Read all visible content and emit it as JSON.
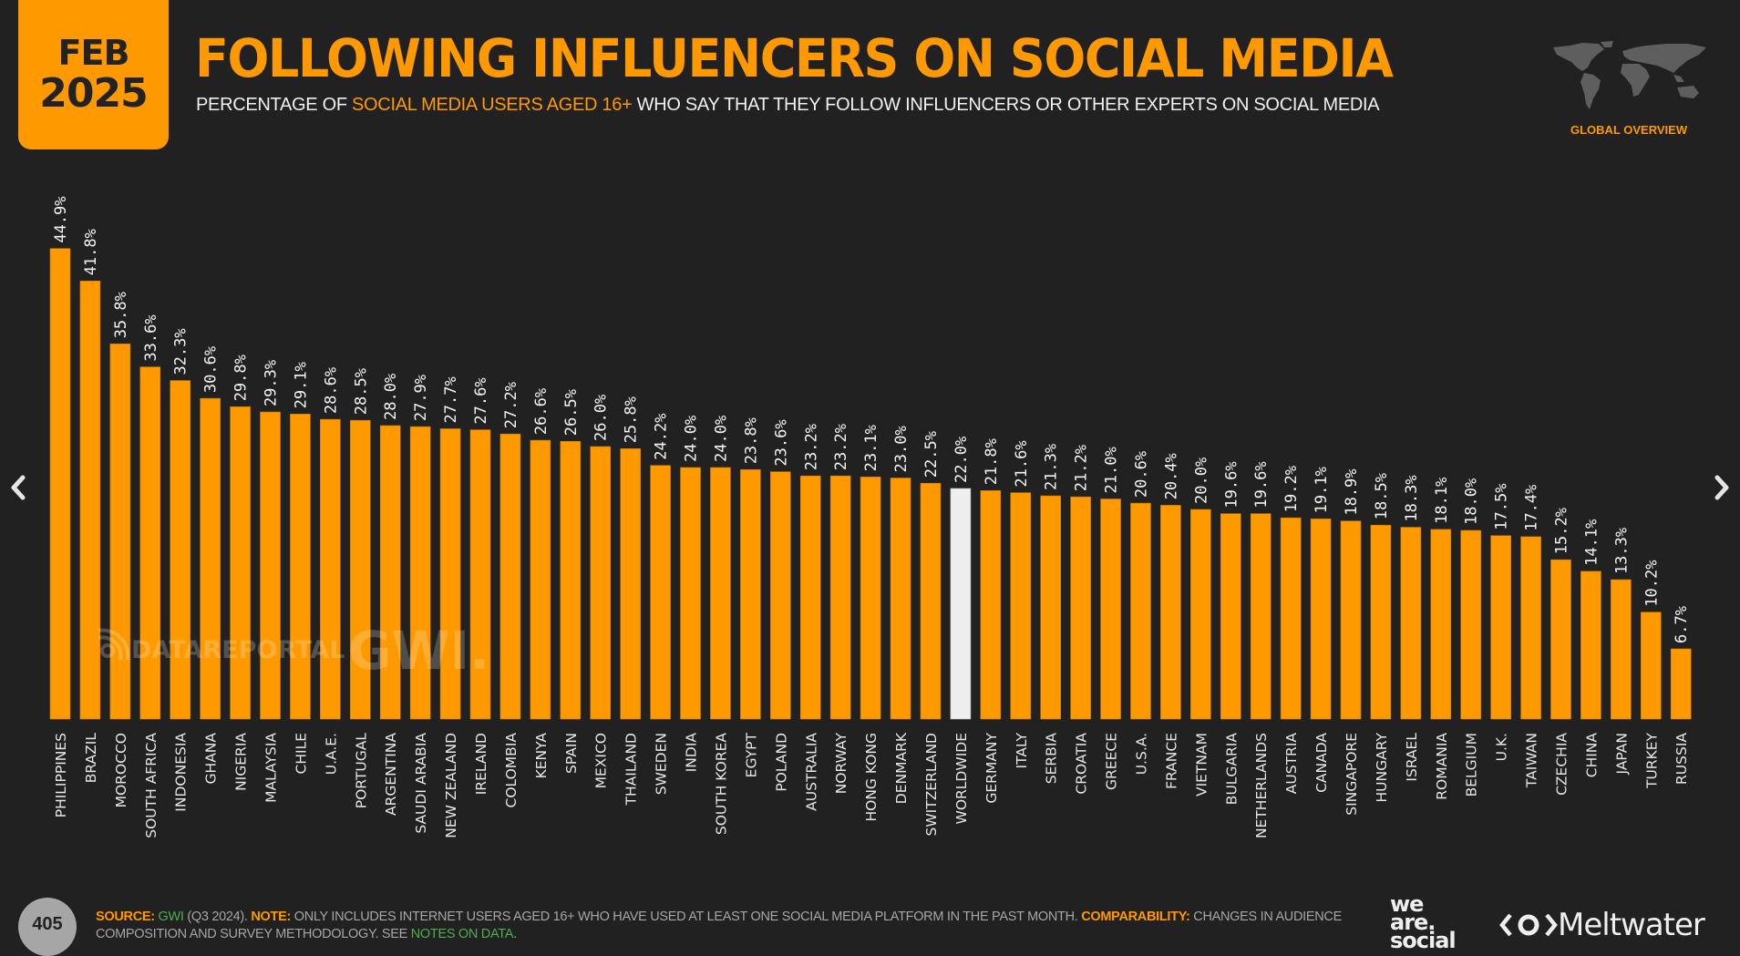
{
  "header": {
    "date_month": "FEB",
    "date_year": "2025",
    "title": "FOLLOWING INFLUENCERS ON SOCIAL MEDIA",
    "subtitle_pre": "PERCENTAGE OF ",
    "subtitle_highlight": "SOCIAL MEDIA USERS AGED 16+",
    "subtitle_post": " WHO SAY THAT THEY FOLLOW INFLUENCERS OR OTHER EXPERTS ON SOCIAL MEDIA",
    "region_label": "GLOBAL OVERVIEW"
  },
  "nav": {
    "prev_icon": "chevron-left-icon",
    "next_icon": "chevron-right-icon"
  },
  "watermarks": {
    "datareportal": "DATAREPORTAL",
    "gwi": "GWI."
  },
  "colors": {
    "accent": "#ff9900",
    "highlight_bar": "#eeeeee",
    "background": "#212121",
    "link": "#4caf50"
  },
  "chart_data": {
    "type": "bar",
    "title": "FOLLOWING INFLUENCERS ON SOCIAL MEDIA",
    "xlabel": "",
    "ylabel": "",
    "unit": "%",
    "ylim": [
      0,
      45
    ],
    "grid": false,
    "highlight_category": "WORLDWIDE",
    "categories": [
      "PHILIPPINES",
      "BRAZIL",
      "MOROCCO",
      "SOUTH AFRICA",
      "INDONESIA",
      "GHANA",
      "NIGERIA",
      "MALAYSIA",
      "CHILE",
      "U.A.E.",
      "PORTUGAL",
      "ARGENTINA",
      "SAUDI ARABIA",
      "NEW ZEALAND",
      "IRELAND",
      "COLOMBIA",
      "KENYA",
      "SPAIN",
      "MEXICO",
      "THAILAND",
      "SWEDEN",
      "INDIA",
      "SOUTH KOREA",
      "EGYPT",
      "POLAND",
      "AUSTRALIA",
      "NORWAY",
      "HONG KONG",
      "DENMARK",
      "SWITZERLAND",
      "WORLDWIDE",
      "GERMANY",
      "ITALY",
      "SERBIA",
      "CROATIA",
      "GREECE",
      "U.S.A.",
      "FRANCE",
      "VIETNAM",
      "BULGARIA",
      "NETHERLANDS",
      "AUSTRIA",
      "CANADA",
      "SINGAPORE",
      "HUNGARY",
      "ISRAEL",
      "ROMANIA",
      "BELGIUM",
      "U.K.",
      "TAIWAN",
      "CZECHIA",
      "CHINA",
      "JAPAN",
      "TURKEY",
      "RUSSIA"
    ],
    "values": [
      44.9,
      41.8,
      35.8,
      33.6,
      32.3,
      30.6,
      29.8,
      29.3,
      29.1,
      28.6,
      28.5,
      28.0,
      27.9,
      27.7,
      27.6,
      27.2,
      26.6,
      26.5,
      26.0,
      25.8,
      24.2,
      24.0,
      24.0,
      23.8,
      23.6,
      23.2,
      23.2,
      23.1,
      23.0,
      22.5,
      22.0,
      21.8,
      21.6,
      21.3,
      21.2,
      21.0,
      20.6,
      20.4,
      20.0,
      19.6,
      19.6,
      19.2,
      19.1,
      18.9,
      18.5,
      18.3,
      18.1,
      18.0,
      17.5,
      17.4,
      15.2,
      14.1,
      13.3,
      10.2,
      6.7
    ],
    "value_labels": [
      "44.9%",
      "41.8%",
      "35.8%",
      "33.6%",
      "32.3%",
      "30.6%",
      "29.8%",
      "29.3%",
      "29.1%",
      "28.6%",
      "28.5%",
      "28.0%",
      "27.9%",
      "27.7%",
      "27.6%",
      "27.2%",
      "26.6%",
      "26.5%",
      "26.0%",
      "25.8%",
      "24.2%",
      "24.0%",
      "24.0%",
      "23.8%",
      "23.6%",
      "23.2%",
      "23.2%",
      "23.1%",
      "23.0%",
      "22.5%",
      "22.0%",
      "21.8%",
      "21.6%",
      "21.3%",
      "21.2%",
      "21.0%",
      "20.6%",
      "20.4%",
      "20.0%",
      "19.6%",
      "19.6%",
      "19.2%",
      "19.1%",
      "18.9%",
      "18.5%",
      "18.3%",
      "18.1%",
      "18.0%",
      "17.5%",
      "17.4%",
      "15.2%",
      "14.1%",
      "13.3%",
      "10.2%",
      "6.7%"
    ]
  },
  "footer": {
    "page_number": "405",
    "source_label": "SOURCE:",
    "source_link": "GWI",
    "source_rest": " (Q3 2024). ",
    "note_label": "NOTE:",
    "note_text": " ONLY INCLUDES INTERNET USERS AGED 16+ WHO HAVE USED AT LEAST ONE SOCIAL MEDIA PLATFORM IN THE PAST MONTH. ",
    "comparability_label": "COMPARABILITY:",
    "comparability_text": " CHANGES IN AUDIENCE COMPOSITION AND SURVEY METHODOLOGY. SEE ",
    "notes_link": "NOTES ON DATA",
    "end": ".",
    "brand_1_line1": "we",
    "brand_1_line2": "are.",
    "brand_1_line3": "social",
    "brand_2": "Meltwater"
  }
}
